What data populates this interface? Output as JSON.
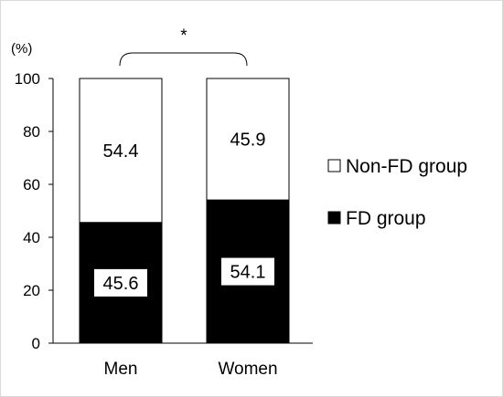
{
  "chart_data": {
    "type": "bar",
    "stacked": true,
    "percent_stacked": true,
    "categories": [
      "Men",
      "Women"
    ],
    "series": [
      {
        "name": "FD group",
        "values": [
          45.6,
          54.1
        ],
        "color": "#000000"
      },
      {
        "name": "Non-FD group",
        "values": [
          54.4,
          45.9
        ],
        "color": "#ffffff"
      }
    ],
    "y_unit_label": "(%)",
    "ylim": [
      0,
      100
    ],
    "yticks": [
      0,
      20,
      40,
      60,
      80,
      100
    ],
    "grid": false,
    "legend_position": "right",
    "legend_order": [
      "Non-FD group",
      "FD group"
    ],
    "significance_marker": "*"
  }
}
